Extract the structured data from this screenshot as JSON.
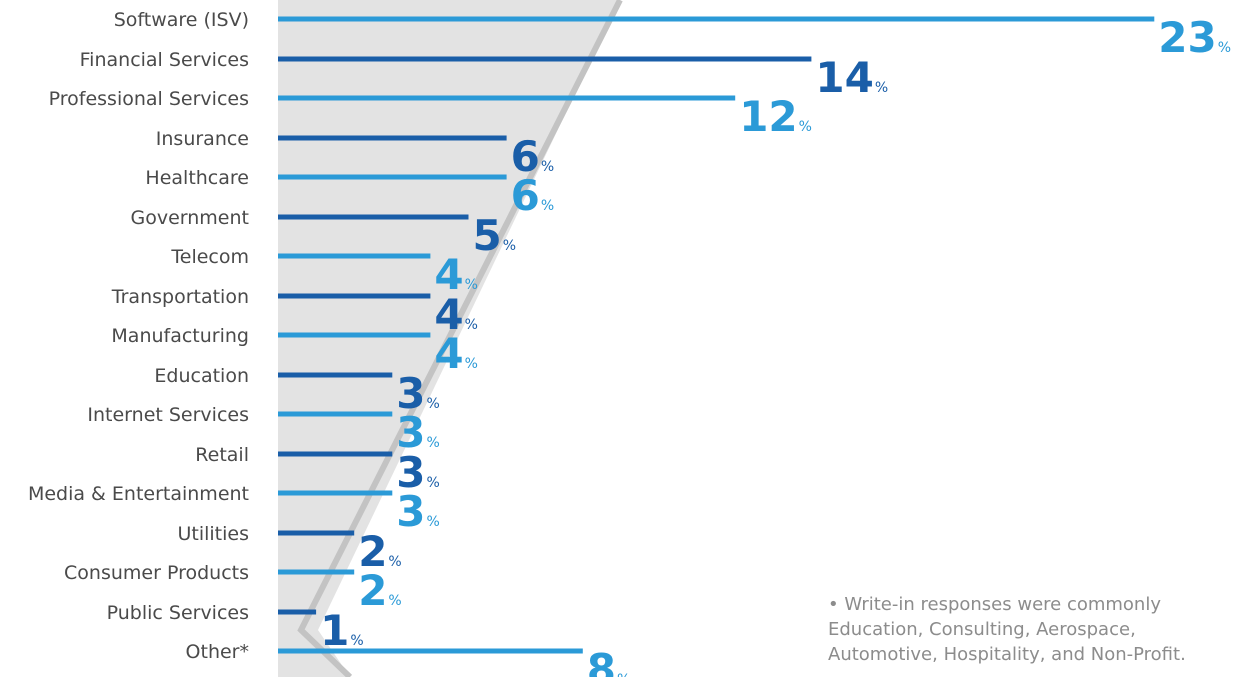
{
  "chart_data": {
    "type": "bar",
    "orientation": "horizontal",
    "categories": [
      "Software (ISV)",
      "Financial Services",
      "Professional Services",
      "Insurance",
      "Healthcare",
      "Government",
      "Telecom",
      "Transportation",
      "Manufacturing",
      "Education",
      "Internet Services",
      "Retail",
      "Media & Entertainment",
      "Utilities",
      "Consumer Products",
      "Public Services",
      "Other*"
    ],
    "values": [
      23,
      14,
      12,
      6,
      6,
      5,
      4,
      4,
      4,
      3,
      3,
      3,
      3,
      2,
      2,
      1,
      8
    ],
    "unit": "%",
    "colors": {
      "light": "#2b9ad7",
      "dark": "#1a5ea8",
      "wedge": "#e3e3e3",
      "wedge_edge": "#c3c3c3",
      "label": "#4a4a4a",
      "note": "#8c8c8c"
    },
    "color_pattern": [
      "light",
      "dark",
      "light",
      "dark",
      "light",
      "dark",
      "light",
      "dark",
      "light",
      "dark",
      "light",
      "dark",
      "light",
      "dark",
      "light",
      "dark",
      "light"
    ],
    "footnote": [
      "• Write-in responses were commonly",
      "Education, Consulting, Aerospace,",
      "Automotive, Hospitality, and Non-Profit."
    ]
  }
}
